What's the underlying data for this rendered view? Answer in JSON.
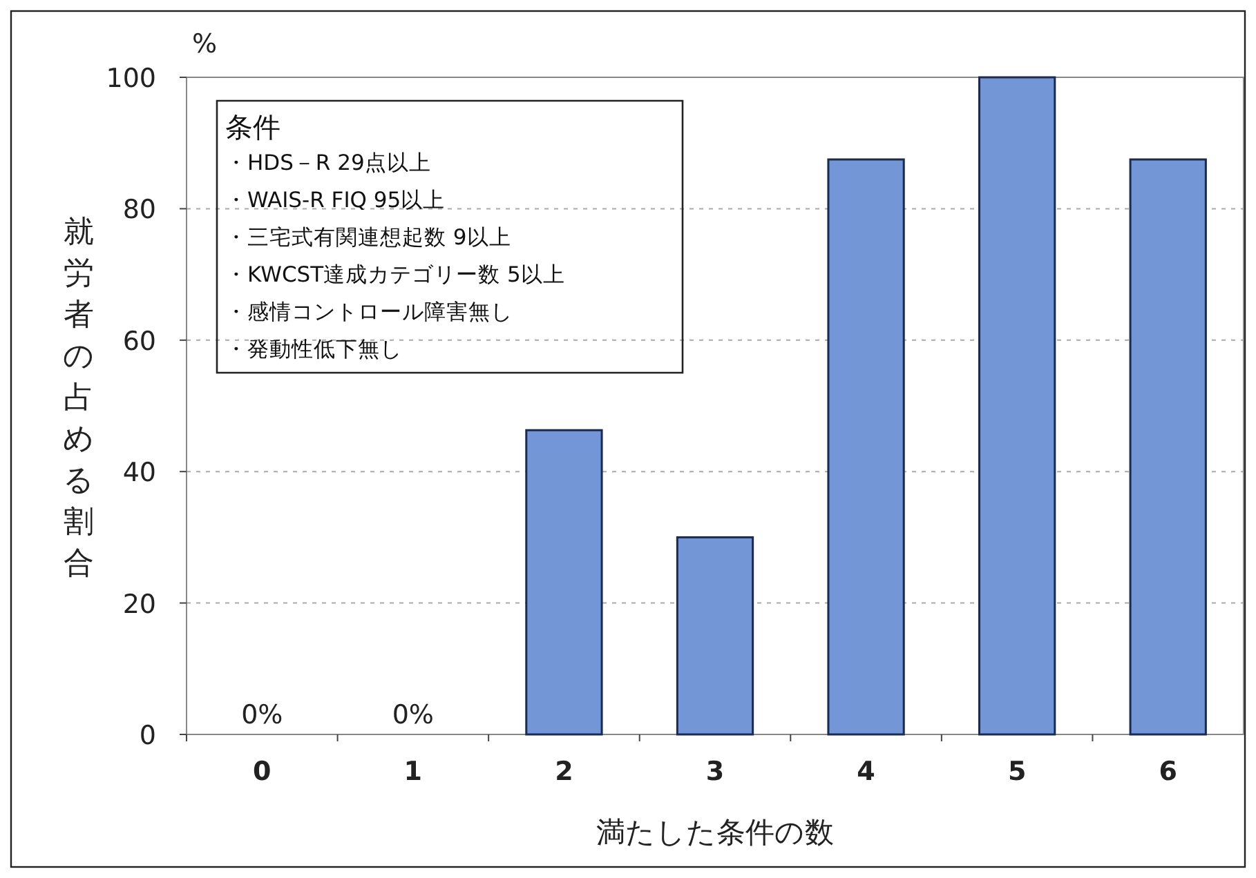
{
  "chart_data": {
    "type": "bar",
    "xlabel": "満たした条件の数",
    "ylabel": "就労者の占める割合",
    "categories": [
      "0",
      "1",
      "2",
      "3",
      "4",
      "5",
      "6"
    ],
    "values": [
      0,
      0,
      46.3,
      30,
      87.5,
      100,
      87.5
    ],
    "value_labels": [
      "0%",
      "0%",
      null,
      null,
      null,
      null,
      null
    ],
    "color": "#7396d6",
    "ylim": [
      0,
      100
    ],
    "yticks": [
      0,
      20,
      40,
      60,
      80,
      100
    ],
    "grid": "y",
    "annotations": [
      "%",
      "条件",
      "・HDS－R 29点以上",
      "・WAIS-R FIQ 95以上",
      "・三宅式有関連想起数 9以上",
      "・KWCST達成カテゴリー数 5以上",
      "・感情コントロール障害無し",
      "・発動性低下無し"
    ]
  }
}
